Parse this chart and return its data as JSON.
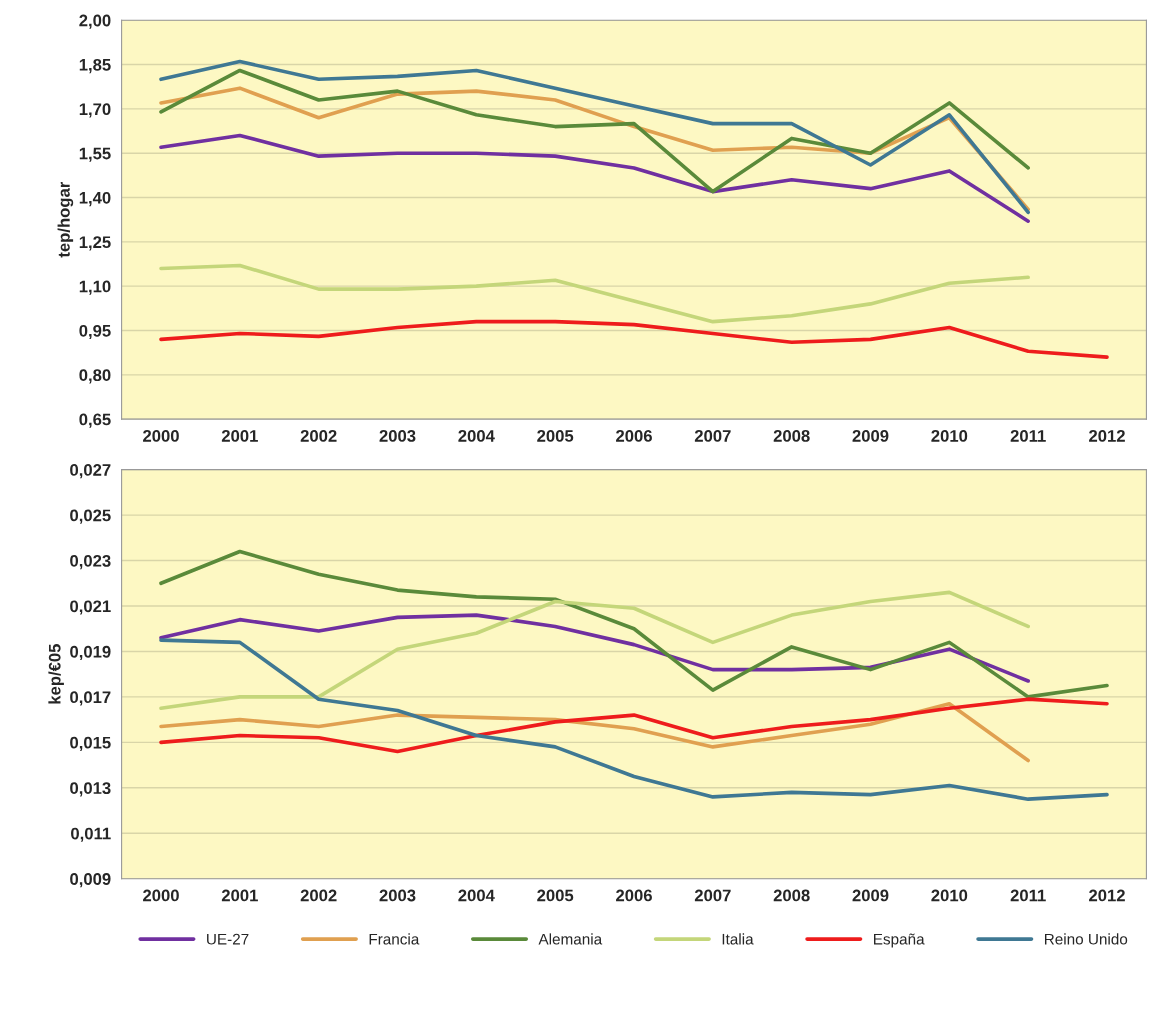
{
  "chart_data": [
    {
      "type": "line",
      "ylabel": "tep/hogar",
      "categories": [
        "2000",
        "2001",
        "2002",
        "2003",
        "2004",
        "2005",
        "2006",
        "2007",
        "2008",
        "2009",
        "2010",
        "2011",
        "2012"
      ],
      "ylim": [
        0.65,
        2.0
      ],
      "yticks": [
        {
          "value": 0.65,
          "label": "0,65"
        },
        {
          "value": 0.8,
          "label": "0,80"
        },
        {
          "value": 0.95,
          "label": "0,95"
        },
        {
          "value": 1.1,
          "label": "1,10"
        },
        {
          "value": 1.25,
          "label": "1,25"
        },
        {
          "value": 1.4,
          "label": "1,40"
        },
        {
          "value": 1.55,
          "label": "1,55"
        },
        {
          "value": 1.7,
          "label": "1,70"
        },
        {
          "value": 1.85,
          "label": "1,85"
        },
        {
          "value": 2.0,
          "label": "2,00"
        }
      ],
      "grid": "y",
      "legend": false,
      "series": [
        {
          "color": "#7030a0",
          "values": [
            1.57,
            1.61,
            1.54,
            1.55,
            1.55,
            1.54,
            1.5,
            1.42,
            1.46,
            1.43,
            1.49,
            1.32,
            null
          ]
        },
        {
          "color": "#e0a050",
          "values": [
            1.72,
            1.77,
            1.67,
            1.75,
            1.76,
            1.73,
            1.64,
            1.56,
            1.57,
            1.55,
            1.67,
            1.36,
            null
          ]
        },
        {
          "color": "#5a8a3a",
          "values": [
            1.69,
            1.83,
            1.73,
            1.76,
            1.68,
            1.64,
            1.65,
            1.42,
            1.6,
            1.55,
            1.72,
            1.5,
            null
          ]
        },
        {
          "color": "#c4d67a",
          "values": [
            1.16,
            1.17,
            1.09,
            1.09,
            1.1,
            1.12,
            1.05,
            0.98,
            1.0,
            1.04,
            1.11,
            1.13,
            null
          ]
        },
        {
          "color": "#ee1c1c",
          "values": [
            0.92,
            0.94,
            0.93,
            0.96,
            0.98,
            0.98,
            0.97,
            0.94,
            0.91,
            0.92,
            0.96,
            0.88,
            0.86
          ]
        },
        {
          "color": "#3f7893",
          "values": [
            1.8,
            1.86,
            1.8,
            1.81,
            1.83,
            1.77,
            1.71,
            1.65,
            1.65,
            1.51,
            1.68,
            1.35,
            null
          ]
        }
      ]
    },
    {
      "type": "line",
      "ylabel": "kep/€05",
      "categories": [
        "2000",
        "2001",
        "2002",
        "2003",
        "2004",
        "2005",
        "2006",
        "2007",
        "2008",
        "2009",
        "2010",
        "2011",
        "2012"
      ],
      "ylim": [
        0.009,
        0.027
      ],
      "yticks": [
        {
          "value": 0.009,
          "label": "0,009"
        },
        {
          "value": 0.011,
          "label": "0,011"
        },
        {
          "value": 0.013,
          "label": "0,013"
        },
        {
          "value": 0.015,
          "label": "0,015"
        },
        {
          "value": 0.017,
          "label": "0,017"
        },
        {
          "value": 0.019,
          "label": "0,019"
        },
        {
          "value": 0.021,
          "label": "0,021"
        },
        {
          "value": 0.023,
          "label": "0,023"
        },
        {
          "value": 0.025,
          "label": "0,025"
        },
        {
          "value": 0.027,
          "label": "0,027"
        }
      ],
      "grid": "y",
      "legend": "bottom",
      "series": [
        {
          "name": "UE-27",
          "color": "#7030a0",
          "values": [
            0.0196,
            0.0204,
            0.0199,
            0.0205,
            0.0206,
            0.0201,
            0.0193,
            0.0182,
            0.0182,
            0.0183,
            0.0191,
            0.0177,
            null
          ]
        },
        {
          "name": "Francia",
          "color": "#e0a050",
          "values": [
            0.0157,
            0.016,
            0.0157,
            0.0162,
            0.0161,
            0.016,
            0.0156,
            0.0148,
            0.0153,
            0.0158,
            0.0167,
            0.0142,
            null
          ]
        },
        {
          "name": "Alemania",
          "color": "#5a8a3a",
          "values": [
            0.022,
            0.0234,
            0.0224,
            0.0217,
            0.0214,
            0.0213,
            0.02,
            0.0173,
            0.0192,
            0.0182,
            0.0194,
            0.017,
            0.0175
          ]
        },
        {
          "name": "Italia",
          "color": "#c4d67a",
          "values": [
            0.0165,
            0.017,
            0.017,
            0.0191,
            0.0198,
            0.0212,
            0.0209,
            0.0194,
            0.0206,
            0.0212,
            0.0216,
            0.0201,
            null
          ]
        },
        {
          "name": "España",
          "color": "#ee1c1c",
          "values": [
            0.015,
            0.0153,
            0.0152,
            0.0146,
            0.0153,
            0.0159,
            0.0162,
            0.0152,
            0.0157,
            0.016,
            0.0165,
            0.0169,
            0.0167
          ]
        },
        {
          "name": "Reino Unido",
          "color": "#3f7893",
          "values": [
            0.0195,
            0.0194,
            0.0169,
            0.0164,
            0.0153,
            0.0148,
            0.0135,
            0.0126,
            0.0128,
            0.0127,
            0.0131,
            0.0125,
            0.0127
          ]
        }
      ]
    }
  ]
}
